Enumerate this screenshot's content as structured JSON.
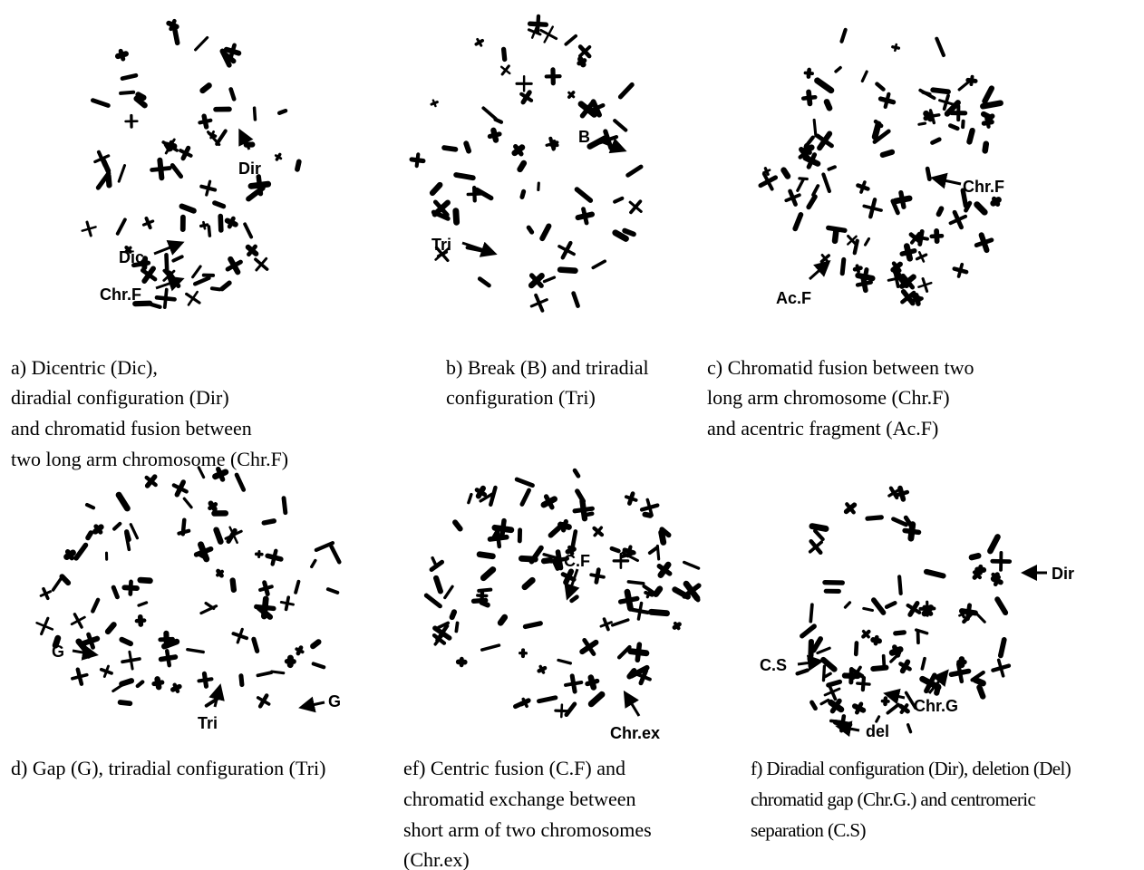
{
  "panels": [
    {
      "caption": [
        "a) Dicentric (Dic),",
        "diradial configuration (Dir)",
        "and chromatid fusion between",
        "two long arm chromosome (Chr.F)"
      ],
      "labels": [
        "Dir",
        "Dic",
        "Chr.F"
      ]
    },
    {
      "caption": [
        "b) Break (B) and triradial",
        "configuration (Tri)"
      ],
      "labels": [
        "B",
        "Tri"
      ]
    },
    {
      "caption": [
        "c) Chromatid fusion between two",
        "long arm chromosome (Chr.F)",
        "and acentric fragment (Ac.F)"
      ],
      "labels": [
        "Chr.F",
        "Ac.F"
      ]
    },
    {
      "caption": [
        "d) Gap (G), triradial configuration (Tri)"
      ],
      "labels": [
        "G",
        "Tri",
        "G"
      ]
    },
    {
      "caption": [
        "ef) Centric fusion (C.F) and",
        "chromatid exchange between",
        "short arm of two chromosomes",
        "(Chr.ex)"
      ],
      "labels": [
        "C.F",
        "Chr.ex"
      ]
    },
    {
      "caption": [
        "f) Diradial configuration (Dir), deletion (Del)",
        "chromatid gap (Chr.G.) and centromeric",
        "separation (C.S)"
      ],
      "labels": [
        "Dir",
        "C.S",
        "Chr.G",
        "del"
      ]
    }
  ]
}
